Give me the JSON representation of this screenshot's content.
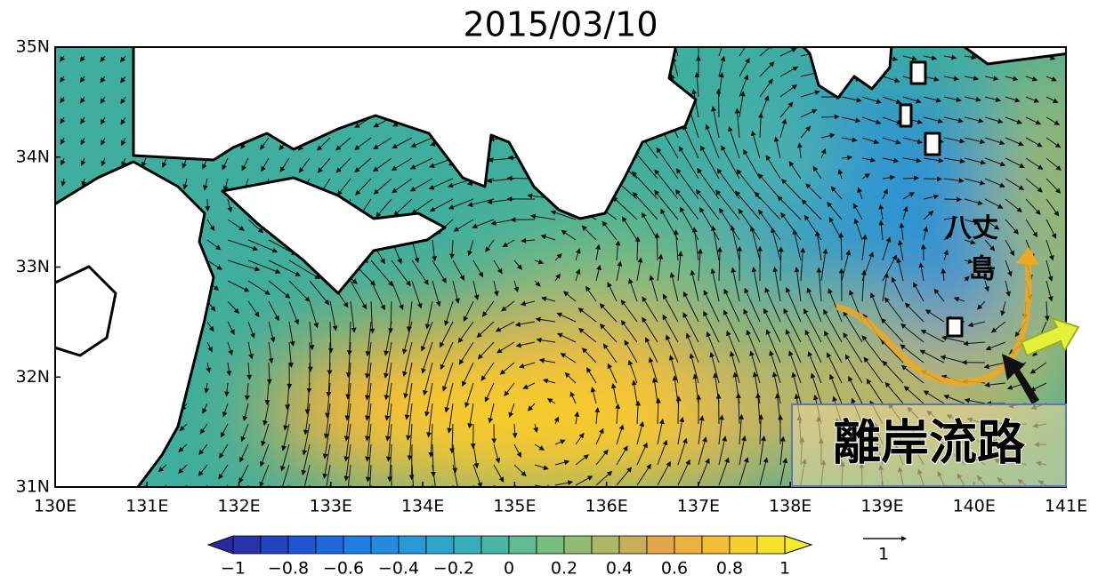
{
  "title": "2015/03/10",
  "lat_labels": [
    "35N",
    "34N",
    "33N",
    "32N",
    "31N"
  ],
  "lon_labels": [
    "130E",
    "131E",
    "132E",
    "133E",
    "134E",
    "135E",
    "136E",
    "137E",
    "138E",
    "139E",
    "140E",
    "141E"
  ],
  "colorbar": {
    "labels": [
      "−1",
      "−0.8",
      "−0.6",
      "−0.4",
      "−0.2",
      "0",
      "0.2",
      "0.4",
      "0.6",
      "0.8",
      "1"
    ]
  },
  "reference_vector": {
    "label": "1"
  },
  "annotations": {
    "island": [
      "八丈",
      "島"
    ],
    "route": "離岸流路"
  }
}
